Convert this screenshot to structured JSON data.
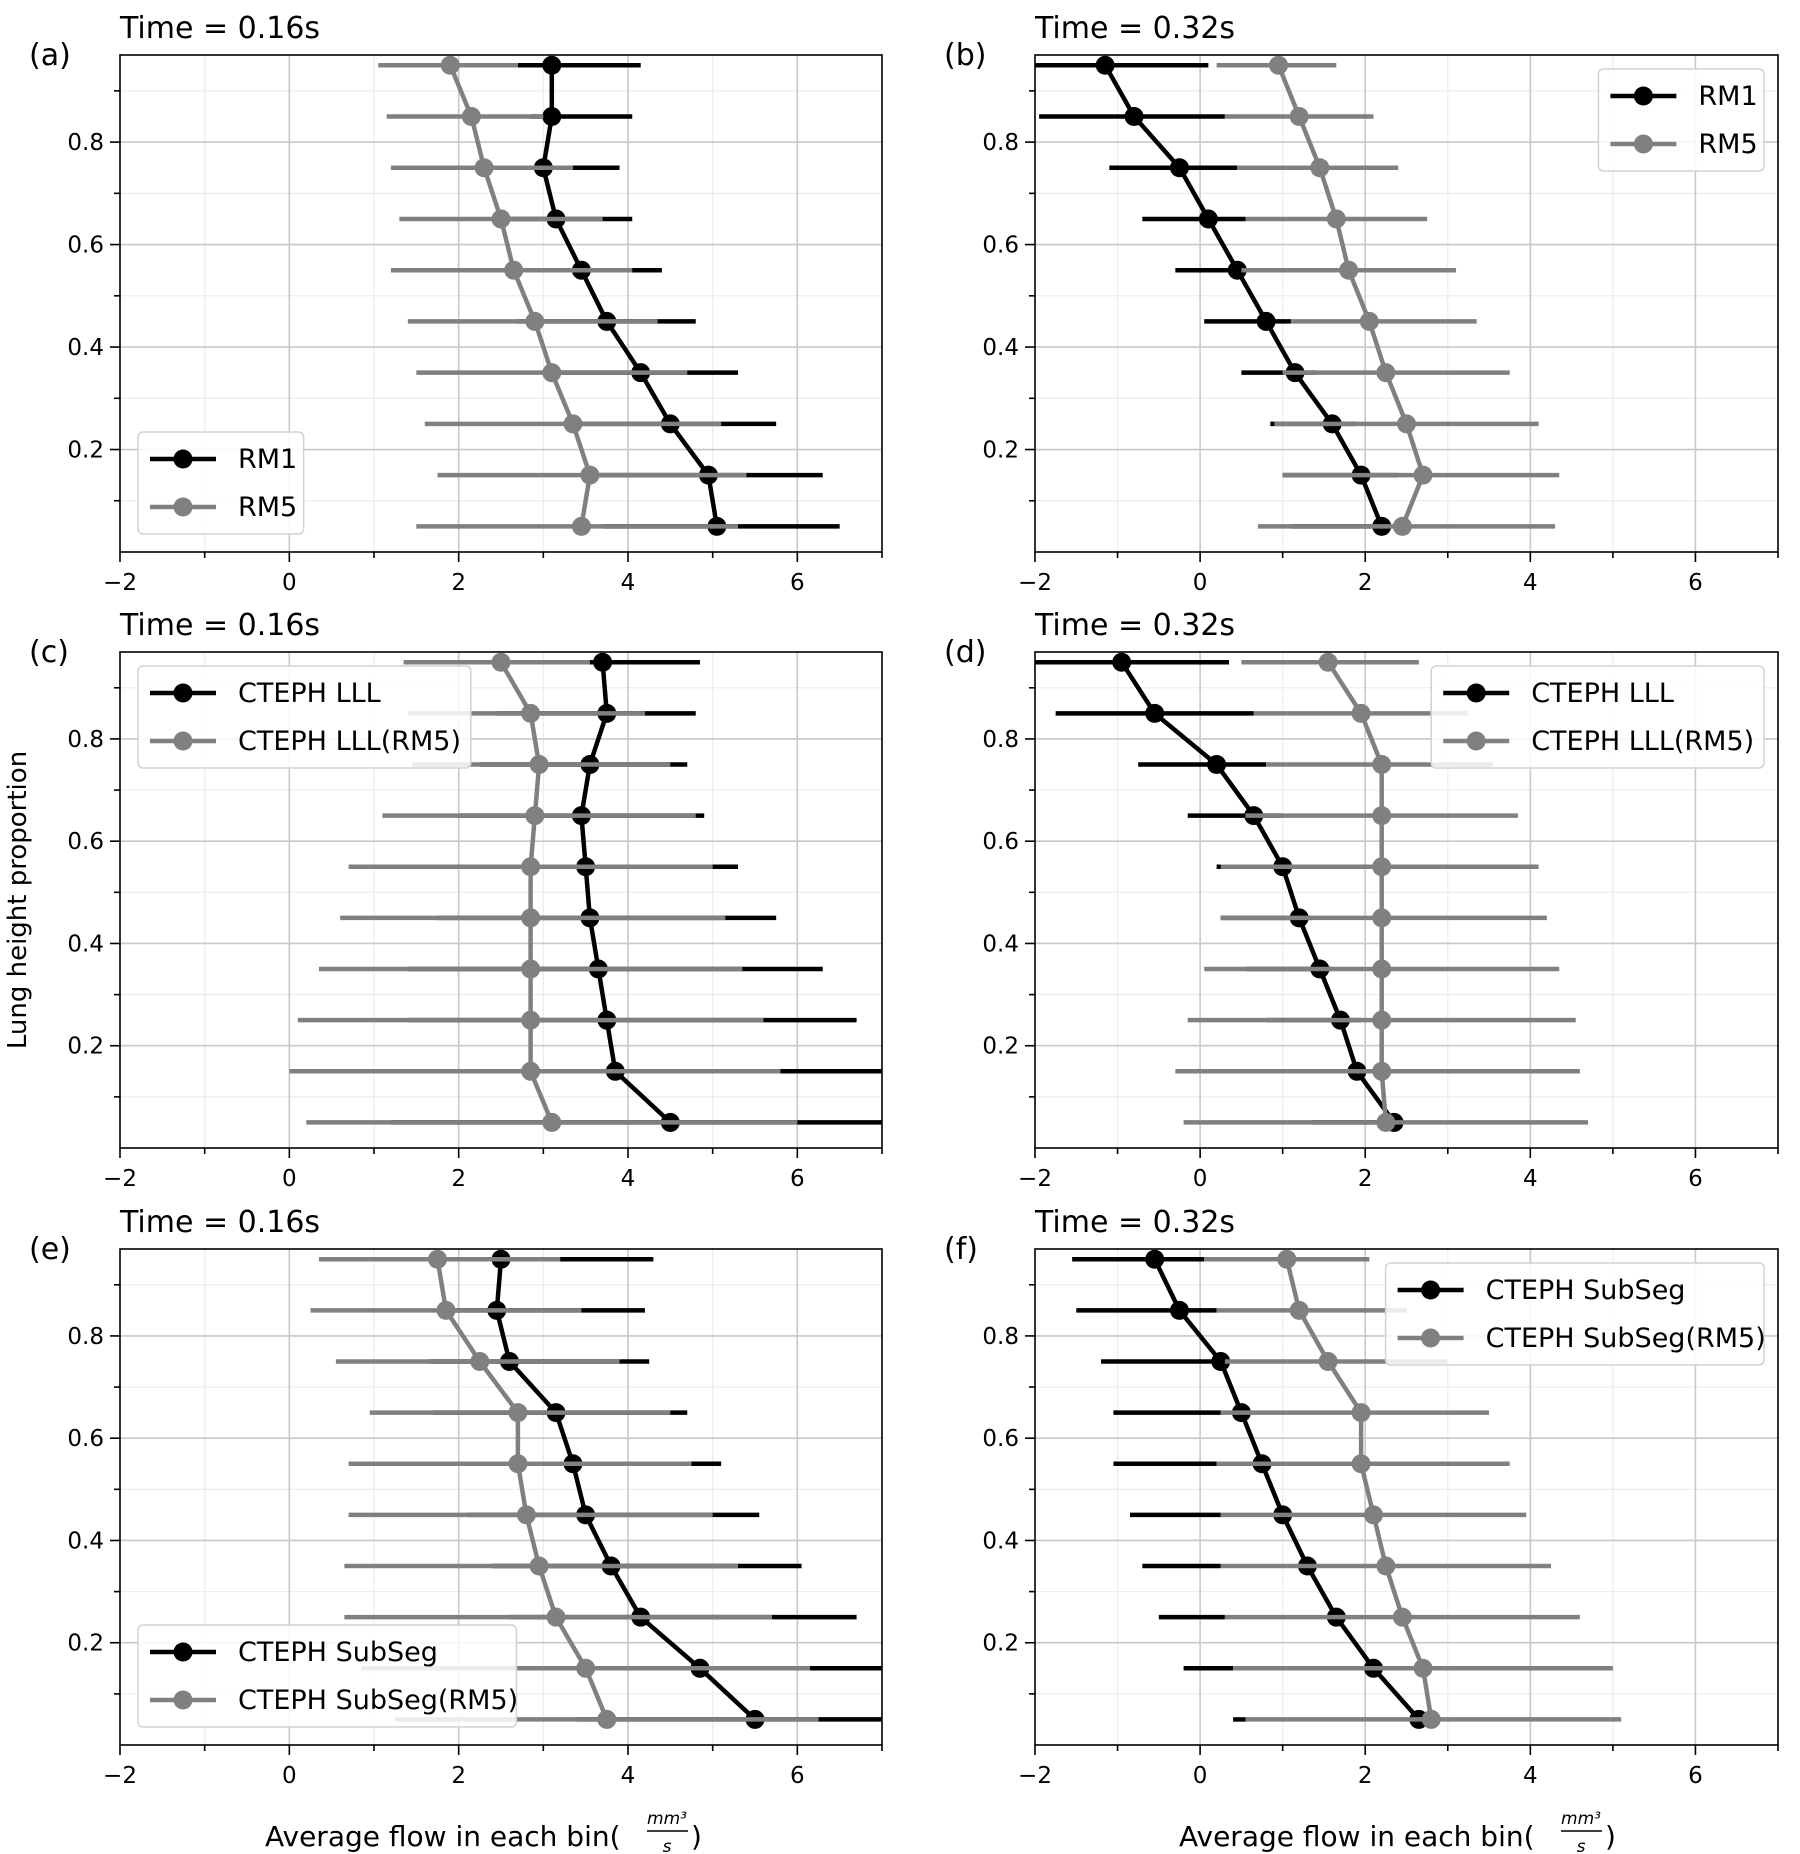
{
  "figure": {
    "ylabel": "Lung height proportion",
    "xlabel_main": "Average flow in each bin(",
    "xlabel_num": "mm³",
    "xlabel_den": "s",
    "xlabel_close": ")"
  },
  "chart_data": [
    {
      "type": "line",
      "panel_label": "(a)",
      "title": "Time = 0.16s",
      "xlim": [
        -2,
        7
      ],
      "ylim": [
        0,
        0.97
      ],
      "grid": true,
      "legend_loc": "lower-left",
      "xticks": [
        -2,
        0,
        2,
        4,
        6
      ],
      "yticks": [
        0.2,
        0.4,
        0.6,
        0.8
      ],
      "y": [
        0.95,
        0.85,
        0.75,
        0.65,
        0.55,
        0.45,
        0.35,
        0.25,
        0.15,
        0.05
      ],
      "series": [
        {
          "name": "RM1",
          "color": "#000000",
          "x": [
            3.1,
            3.1,
            3.0,
            3.15,
            3.45,
            3.75,
            4.15,
            4.5,
            4.95,
            5.05
          ],
          "err": [
            [
              2.7,
              4.15
            ],
            [
              2.85,
              4.05
            ],
            [
              2.55,
              3.9
            ],
            [
              2.45,
              4.05
            ],
            [
              2.45,
              4.4
            ],
            [
              2.7,
              4.8
            ],
            [
              3.0,
              5.3
            ],
            [
              3.3,
              5.75
            ],
            [
              3.6,
              6.3
            ],
            [
              3.7,
              6.5
            ]
          ]
        },
        {
          "name": "RM5",
          "color": "#808080",
          "x": [
            1.9,
            2.15,
            2.3,
            2.5,
            2.65,
            2.9,
            3.1,
            3.35,
            3.55,
            3.45
          ],
          "err": [
            [
              1.05,
              2.7
            ],
            [
              1.15,
              3.0
            ],
            [
              1.2,
              3.35
            ],
            [
              1.3,
              3.7
            ],
            [
              1.2,
              4.05
            ],
            [
              1.4,
              4.35
            ],
            [
              1.5,
              4.7
            ],
            [
              1.6,
              5.1
            ],
            [
              1.75,
              5.4
            ],
            [
              1.5,
              5.3
            ]
          ]
        }
      ]
    },
    {
      "type": "line",
      "panel_label": "(b)",
      "title": "Time = 0.32s",
      "xlim": [
        -2,
        7
      ],
      "ylim": [
        0,
        0.97
      ],
      "grid": true,
      "legend_loc": "upper-right",
      "xticks": [
        -2,
        0,
        2,
        4,
        6
      ],
      "yticks": [
        0.2,
        0.4,
        0.6,
        0.8
      ],
      "y": [
        0.95,
        0.85,
        0.75,
        0.65,
        0.55,
        0.45,
        0.35,
        0.25,
        0.15,
        0.05
      ],
      "series": [
        {
          "name": "RM1",
          "color": "#000000",
          "x": [
            -1.15,
            -0.8,
            -0.25,
            0.1,
            0.45,
            0.8,
            1.15,
            1.6,
            1.95,
            2.2
          ],
          "err": [
            [
              -2.0,
              0.1
            ],
            [
              -1.95,
              0.3
            ],
            [
              -1.1,
              0.45
            ],
            [
              -0.7,
              0.55
            ],
            [
              -0.3,
              0.8
            ],
            [
              0.05,
              1.1
            ],
            [
              0.5,
              1.4
            ],
            [
              0.85,
              1.9
            ],
            [
              1.0,
              2.4
            ],
            [
              1.1,
              2.3
            ]
          ]
        },
        {
          "name": "RM5",
          "color": "#808080",
          "x": [
            0.95,
            1.2,
            1.45,
            1.65,
            1.8,
            2.05,
            2.25,
            2.5,
            2.7,
            2.45
          ],
          "err": [
            [
              0.2,
              1.65
            ],
            [
              0.3,
              2.1
            ],
            [
              0.45,
              2.4
            ],
            [
              0.55,
              2.75
            ],
            [
              0.5,
              3.1
            ],
            [
              1.1,
              3.35
            ],
            [
              1.0,
              3.75
            ],
            [
              0.9,
              4.1
            ],
            [
              1.0,
              4.35
            ],
            [
              0.7,
              4.3
            ]
          ]
        }
      ]
    },
    {
      "type": "line",
      "panel_label": "(c)",
      "title": "Time = 0.16s",
      "xlim": [
        -2,
        7
      ],
      "ylim": [
        0,
        0.97
      ],
      "grid": true,
      "legend_loc": "upper-left",
      "xticks": [
        -2,
        0,
        2,
        4,
        6
      ],
      "yticks": [
        0.2,
        0.4,
        0.6,
        0.8
      ],
      "y": [
        0.95,
        0.85,
        0.75,
        0.65,
        0.55,
        0.45,
        0.35,
        0.25,
        0.15,
        0.05
      ],
      "series": [
        {
          "name": "CTEPH LLL",
          "color": "#000000",
          "x": [
            3.7,
            3.75,
            3.55,
            3.45,
            3.5,
            3.55,
            3.65,
            3.75,
            3.85,
            4.5
          ],
          "err": [
            [
              2.3,
              4.85
            ],
            [
              2.45,
              4.8
            ],
            [
              2.25,
              4.7
            ],
            [
              2.0,
              4.9
            ],
            [
              1.9,
              5.3
            ],
            [
              1.75,
              5.75
            ],
            [
              1.4,
              6.3
            ],
            [
              1.4,
              6.7
            ],
            [
              1.0,
              7.0
            ],
            [
              1.2,
              7.0
            ]
          ]
        },
        {
          "name": "CTEPH LLL(RM5)",
          "color": "#808080",
          "x": [
            2.5,
            2.85,
            2.95,
            2.9,
            2.85,
            2.85,
            2.85,
            2.85,
            2.85,
            3.1
          ],
          "err": [
            [
              1.35,
              3.55
            ],
            [
              1.4,
              4.2
            ],
            [
              1.45,
              4.5
            ],
            [
              1.1,
              4.8
            ],
            [
              0.7,
              5.0
            ],
            [
              0.6,
              5.15
            ],
            [
              0.35,
              5.35
            ],
            [
              0.1,
              5.6
            ],
            [
              0.0,
              5.8
            ],
            [
              0.2,
              6.0
            ]
          ]
        }
      ]
    },
    {
      "type": "line",
      "panel_label": "(d)",
      "title": "Time = 0.32s",
      "xlim": [
        -2,
        7
      ],
      "ylim": [
        0,
        0.97
      ],
      "grid": true,
      "legend_loc": "upper-right",
      "xticks": [
        -2,
        0,
        2,
        4,
        6
      ],
      "yticks": [
        0.2,
        0.4,
        0.6,
        0.8
      ],
      "y": [
        0.95,
        0.85,
        0.75,
        0.65,
        0.55,
        0.45,
        0.35,
        0.25,
        0.15,
        0.05
      ],
      "series": [
        {
          "name": "CTEPH LLL",
          "color": "#000000",
          "x": [
            -0.95,
            -0.55,
            0.2,
            0.65,
            1.0,
            1.2,
            1.45,
            1.7,
            1.9,
            2.35
          ],
          "err": [
            [
              -2.0,
              0.35
            ],
            [
              -1.75,
              0.65
            ],
            [
              -0.75,
              0.8
            ],
            [
              -0.15,
              1.0
            ],
            [
              0.2,
              1.2
            ],
            [
              0.25,
              1.35
            ],
            [
              0.55,
              1.6
            ],
            [
              0.8,
              1.95
            ],
            [
              1.1,
              2.2
            ],
            [
              1.35,
              2.35
            ]
          ]
        },
        {
          "name": "CTEPH LLL(RM5)",
          "color": "#808080",
          "x": [
            1.55,
            1.95,
            2.2,
            2.2,
            2.2,
            2.2,
            2.2,
            2.2,
            2.2,
            2.25
          ],
          "err": [
            [
              0.5,
              2.65
            ],
            [
              0.65,
              3.25
            ],
            [
              0.8,
              3.55
            ],
            [
              0.55,
              3.85
            ],
            [
              0.25,
              4.1
            ],
            [
              0.25,
              4.2
            ],
            [
              0.05,
              4.35
            ],
            [
              -0.15,
              4.55
            ],
            [
              -0.3,
              4.6
            ],
            [
              -0.2,
              4.7
            ]
          ]
        }
      ]
    },
    {
      "type": "line",
      "panel_label": "(e)",
      "title": "Time = 0.16s",
      "xlim": [
        -2,
        7
      ],
      "ylim": [
        0,
        0.97
      ],
      "grid": true,
      "legend_loc": "lower-left",
      "xticks": [
        -2,
        0,
        2,
        4,
        6
      ],
      "yticks": [
        0.2,
        0.4,
        0.6,
        0.8
      ],
      "y": [
        0.95,
        0.85,
        0.75,
        0.65,
        0.55,
        0.45,
        0.35,
        0.25,
        0.15,
        0.05
      ],
      "series": [
        {
          "name": "CTEPH SubSeg",
          "color": "#000000",
          "x": [
            2.5,
            2.45,
            2.6,
            3.15,
            3.35,
            3.5,
            3.8,
            4.15,
            4.85,
            5.5
          ],
          "err": [
            [
              1.85,
              4.3
            ],
            [
              1.75,
              4.2
            ],
            [
              1.65,
              4.25
            ],
            [
              1.7,
              4.7
            ],
            [
              1.9,
              5.1
            ],
            [
              2.1,
              5.55
            ],
            [
              2.4,
              6.05
            ],
            [
              2.6,
              6.7
            ],
            [
              3.1,
              7.0
            ],
            [
              3.4,
              7.0
            ]
          ]
        },
        {
          "name": "CTEPH SubSeg(RM5)",
          "color": "#808080",
          "x": [
            1.75,
            1.85,
            2.25,
            2.7,
            2.7,
            2.8,
            2.95,
            3.15,
            3.5,
            3.75
          ],
          "err": [
            [
              0.35,
              3.2
            ],
            [
              0.25,
              3.45
            ],
            [
              0.55,
              3.9
            ],
            [
              0.95,
              4.5
            ],
            [
              0.7,
              4.75
            ],
            [
              0.7,
              5.0
            ],
            [
              0.65,
              5.3
            ],
            [
              0.65,
              5.7
            ],
            [
              0.85,
              6.15
            ],
            [
              1.25,
              6.25
            ]
          ]
        }
      ]
    },
    {
      "type": "line",
      "panel_label": "(f)",
      "title": "Time = 0.32s",
      "xlim": [
        -2,
        7
      ],
      "ylim": [
        0,
        0.97
      ],
      "grid": true,
      "legend_loc": "upper-right",
      "xticks": [
        -2,
        0,
        2,
        4,
        6
      ],
      "yticks": [
        0.2,
        0.4,
        0.6,
        0.8
      ],
      "y": [
        0.95,
        0.85,
        0.75,
        0.65,
        0.55,
        0.45,
        0.35,
        0.25,
        0.15,
        0.05
      ],
      "series": [
        {
          "name": "CTEPH SubSeg",
          "color": "#000000",
          "x": [
            -0.55,
            -0.25,
            0.25,
            0.5,
            0.75,
            1.0,
            1.3,
            1.65,
            2.1,
            2.65
          ],
          "err": [
            [
              -1.55,
              0.05
            ],
            [
              -1.5,
              0.2
            ],
            [
              -1.2,
              0.3
            ],
            [
              -1.05,
              0.25
            ],
            [
              -1.05,
              0.2
            ],
            [
              -0.85,
              0.25
            ],
            [
              -0.7,
              0.25
            ],
            [
              -0.5,
              0.3
            ],
            [
              -0.2,
              0.4
            ],
            [
              0.4,
              0.55
            ]
          ]
        },
        {
          "name": "CTEPH SubSeg(RM5)",
          "color": "#808080",
          "x": [
            1.05,
            1.2,
            1.55,
            1.95,
            1.95,
            2.1,
            2.25,
            2.45,
            2.7,
            2.8
          ],
          "err": [
            [
              0.05,
              2.05
            ],
            [
              0.2,
              2.5
            ],
            [
              0.3,
              3.0
            ],
            [
              0.25,
              3.5
            ],
            [
              0.2,
              3.75
            ],
            [
              0.25,
              3.95
            ],
            [
              0.25,
              4.25
            ],
            [
              0.3,
              4.6
            ],
            [
              0.4,
              5.0
            ],
            [
              0.55,
              5.1
            ]
          ]
        }
      ]
    }
  ]
}
